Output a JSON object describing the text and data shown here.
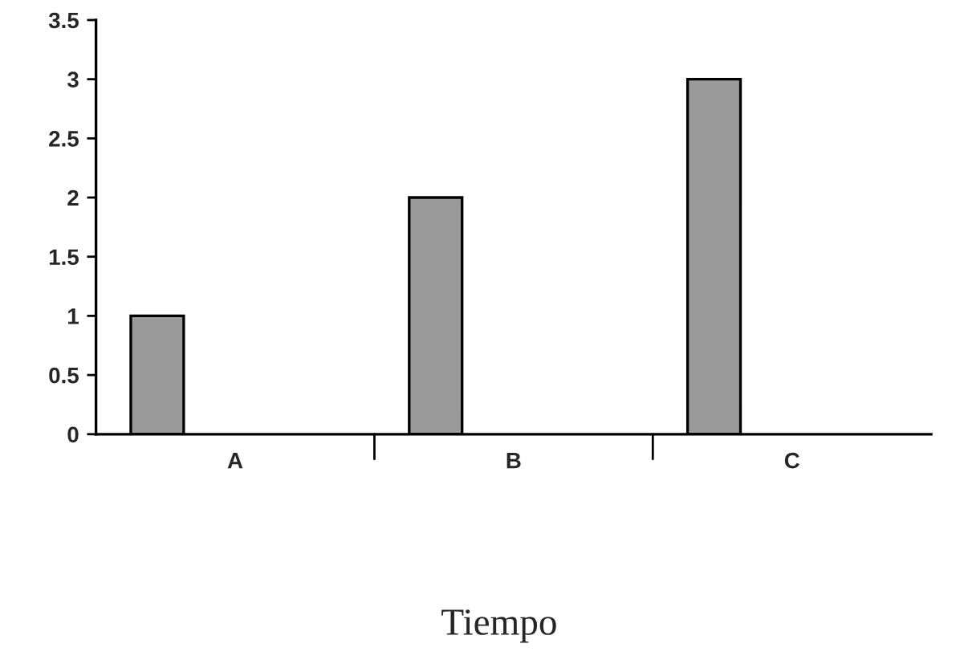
{
  "chart_data": {
    "type": "bar",
    "xlabel": "Tiempo",
    "categories": [
      "A",
      "B",
      "C"
    ],
    "values": [
      1,
      2,
      3
    ],
    "color": "#9a9a9a",
    "ylim": [
      0,
      3.5
    ],
    "yticks": [
      {
        "value": 0,
        "label": "0"
      },
      0.5,
      1,
      1.5,
      2,
      2.5,
      3,
      3.5
    ],
    "grid": false
  }
}
